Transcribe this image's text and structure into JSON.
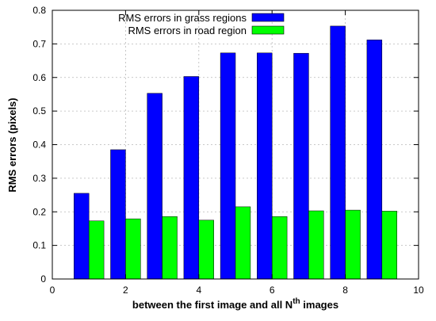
{
  "chart_data": {
    "type": "bar",
    "x": [
      1,
      2,
      3,
      4,
      5,
      6,
      7,
      8,
      9
    ],
    "series": [
      {
        "name": "RMS errors in grass regions",
        "color": "#0000ff",
        "values": [
          0.255,
          0.385,
          0.553,
          0.603,
          0.673,
          0.673,
          0.672,
          0.753,
          0.712
        ]
      },
      {
        "name": "RMS errors in road region",
        "color": "#00ff00",
        "values": [
          0.173,
          0.179,
          0.186,
          0.175,
          0.215,
          0.186,
          0.203,
          0.205,
          0.202
        ]
      }
    ],
    "xlim": [
      0,
      10
    ],
    "ylim": [
      0,
      0.8
    ],
    "xticks": [
      "0",
      "2",
      "4",
      "6",
      "8",
      "10"
    ],
    "yticks": [
      "0",
      "0.1",
      "0.2",
      "0.3",
      "0.4",
      "0.5",
      "0.6",
      "0.7",
      "0.8"
    ],
    "ylabel": "RMS errors (pixels)",
    "xlabel": {
      "prefix": "between the first image and all N",
      "superscript": "th",
      "suffix": " images"
    },
    "grid": true,
    "legend_position": "top-right"
  }
}
